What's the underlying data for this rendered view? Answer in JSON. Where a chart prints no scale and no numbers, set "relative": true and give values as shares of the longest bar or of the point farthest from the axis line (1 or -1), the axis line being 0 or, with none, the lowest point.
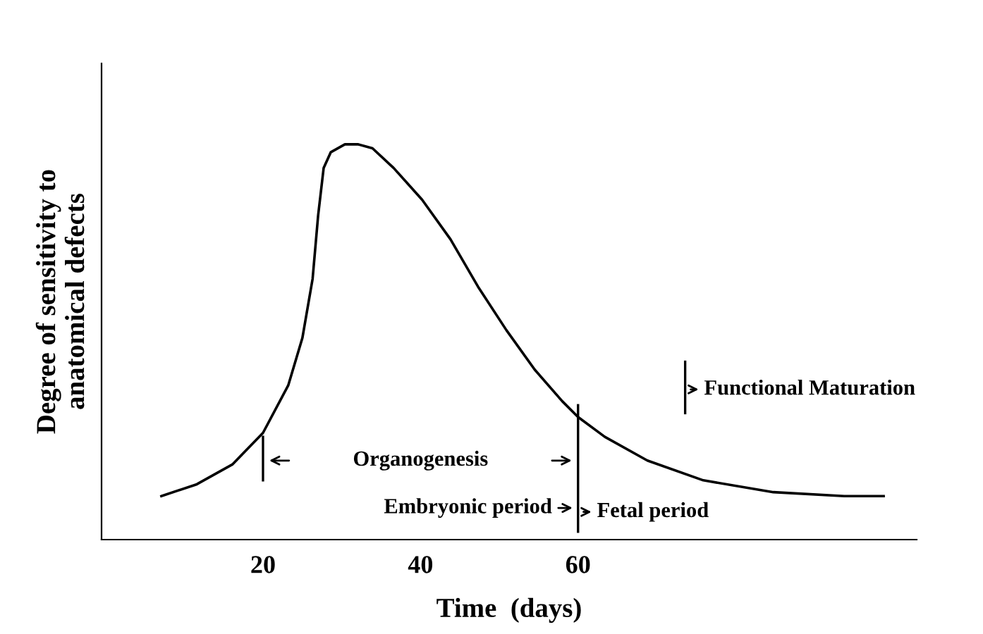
{
  "chart_data": {
    "type": "line",
    "relative": true,
    "xlabel": "Time  (days)",
    "ylabel": "Degree of sensitivity to\nanatomical defects",
    "x": [
      7.1,
      11.6,
      16.1,
      20,
      23.2,
      25,
      26.3,
      27,
      27.7,
      28.6,
      30.4,
      32.1,
      33.9,
      36.6,
      40.2,
      43.8,
      47.3,
      50.9,
      54.5,
      58,
      60,
      63.4,
      68.8,
      75.9,
      84.8,
      93.8,
      98.8
    ],
    "series": [
      {
        "color": "#000000",
        "values": [
          0.11,
          0.14,
          0.19,
          0.27,
          0.39,
          0.51,
          0.66,
          0.82,
          0.94,
          0.98,
          1.0,
          1.0,
          0.99,
          0.94,
          0.86,
          0.76,
          0.64,
          0.53,
          0.43,
          0.35,
          0.31,
          0.26,
          0.2,
          0.15,
          0.12,
          0.11,
          0.11
        ]
      }
    ],
    "xlim": [
      -0.5,
      103
    ],
    "xticks": [
      20,
      40,
      60
    ],
    "grid": false,
    "legend": false,
    "marker": "none",
    "line_style": "solid",
    "ref_lines": [
      {
        "axis": "x",
        "value": 20,
        "color": "#000000"
      },
      {
        "axis": "x",
        "value": 60,
        "color": "#000000"
      },
      {
        "axis": "x",
        "value": 73.6,
        "color": "#000000"
      }
    ],
    "annotations": [
      "Organogenesis",
      "Embryonic period",
      "Fetal period",
      "Functional Maturation"
    ]
  }
}
